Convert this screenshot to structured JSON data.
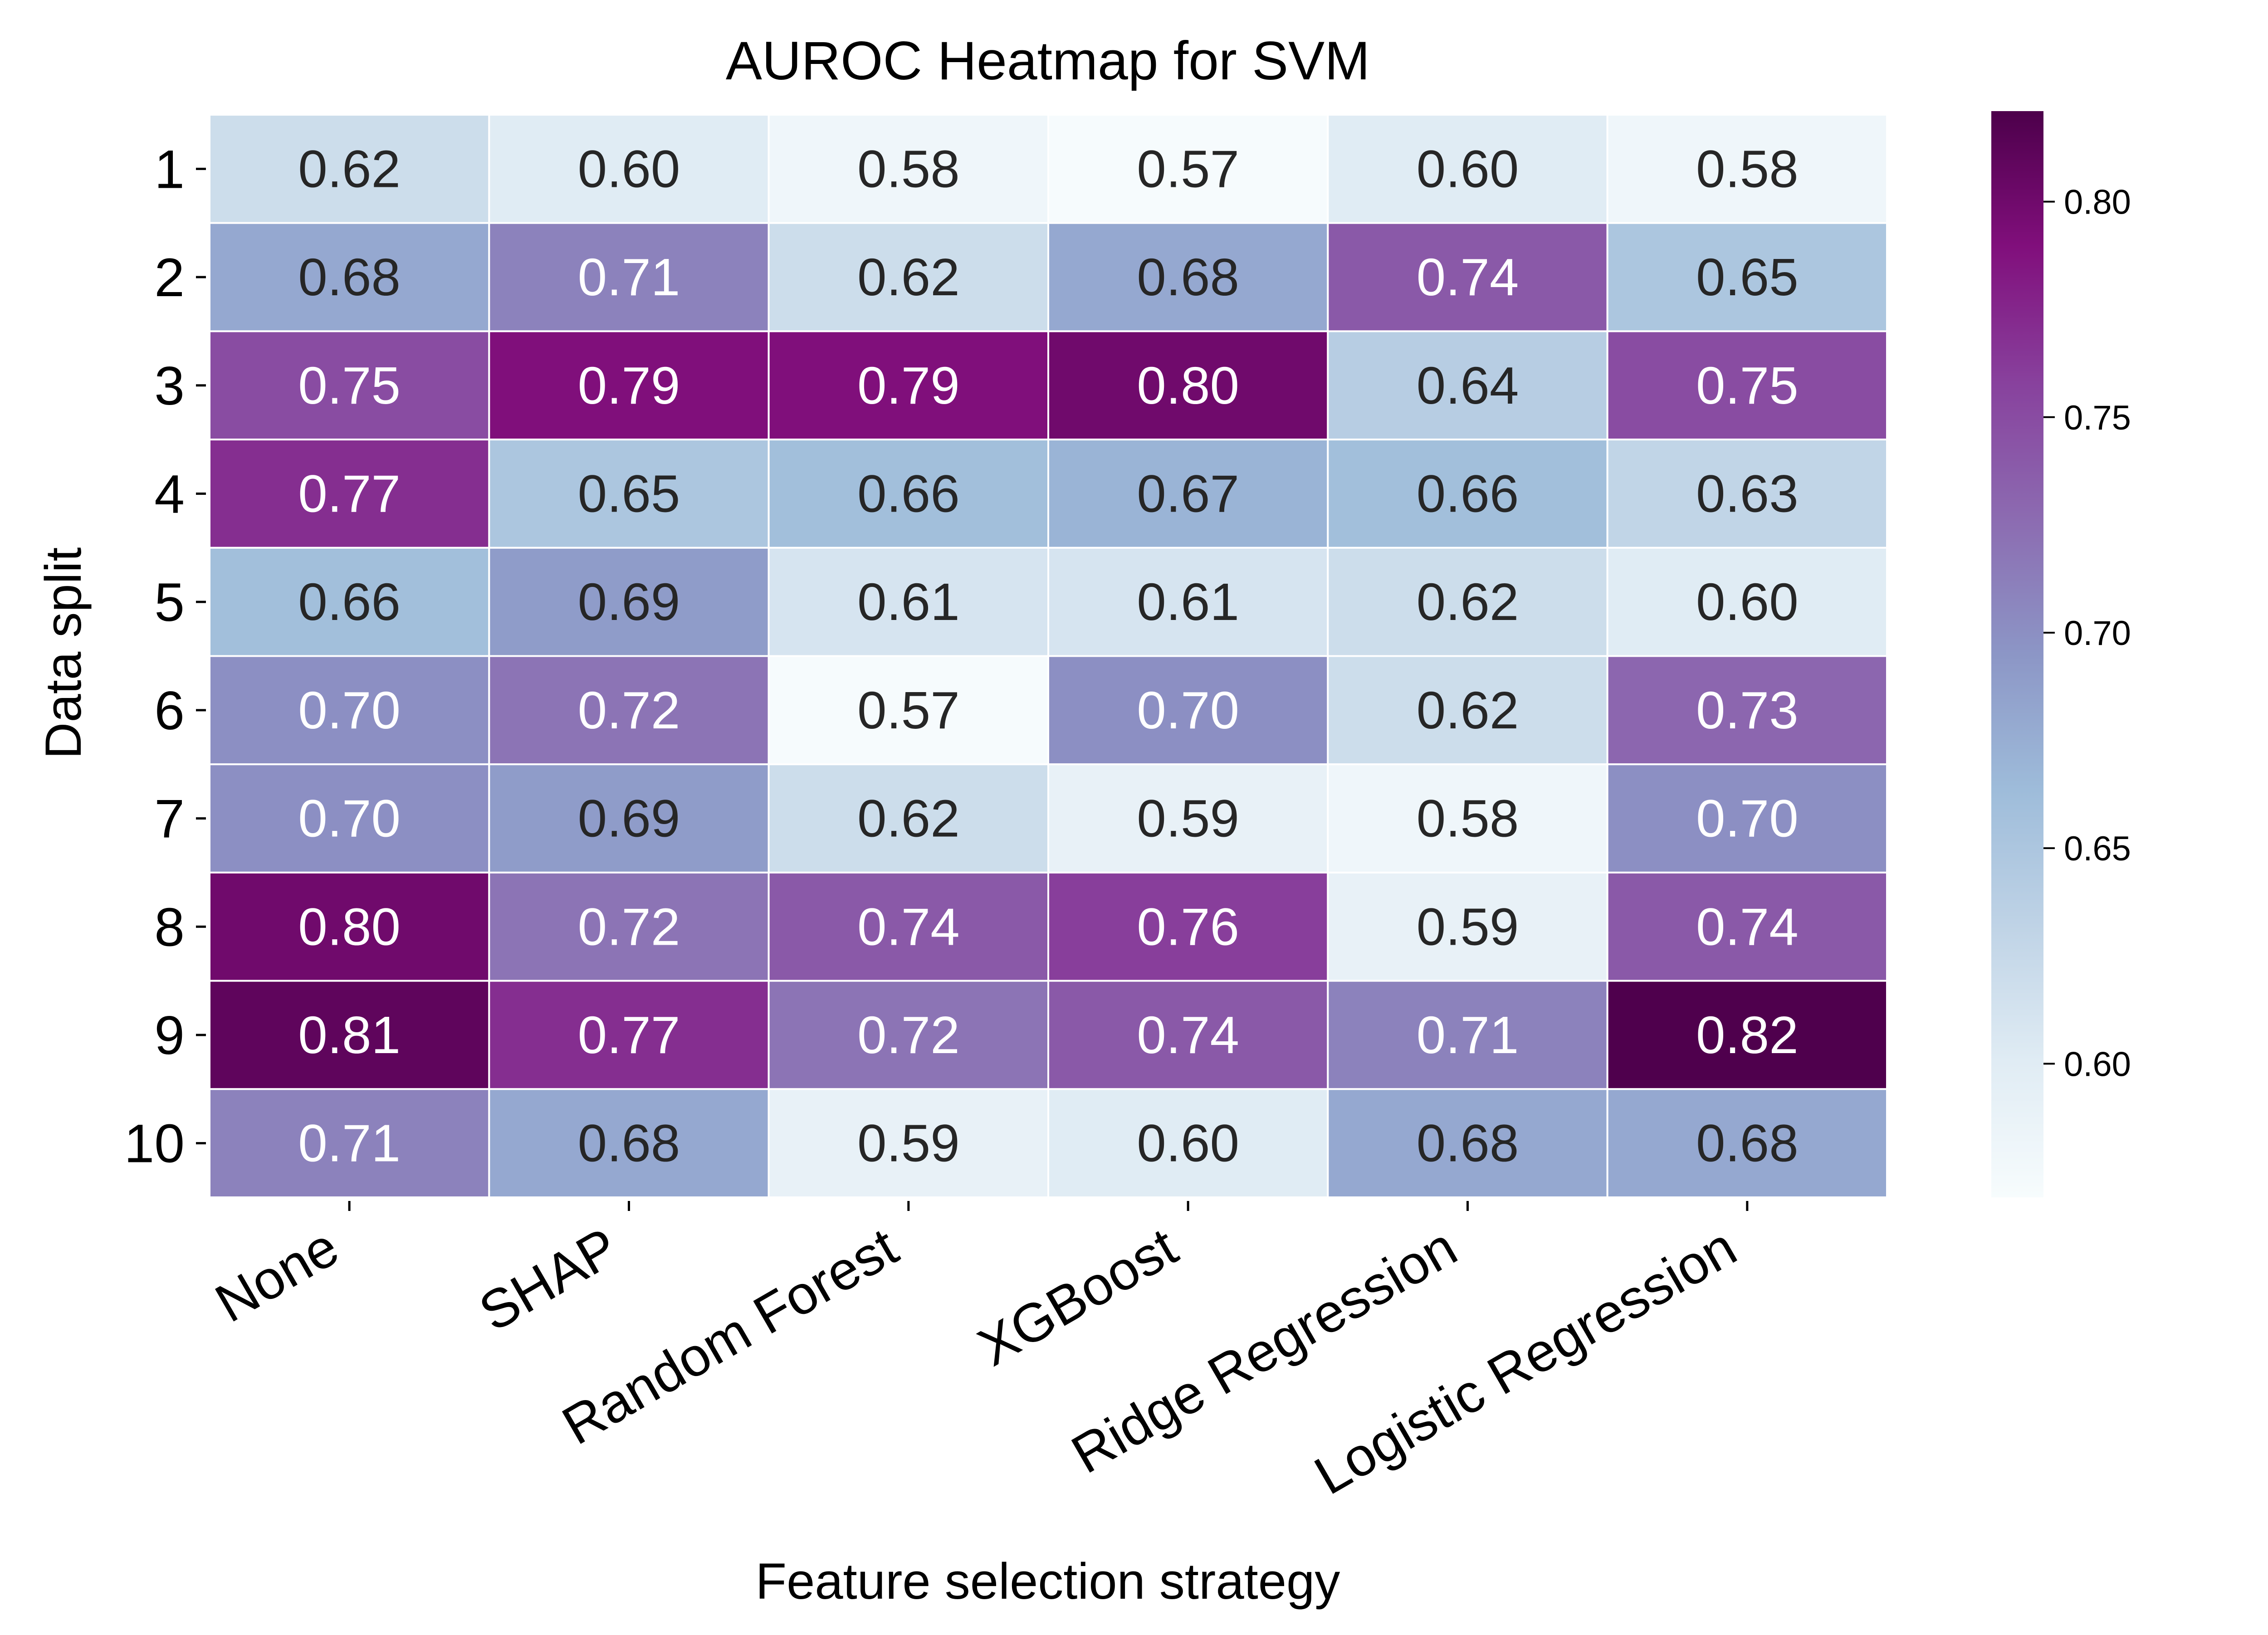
{
  "chart_data": {
    "type": "heatmap",
    "title": "AUROC Heatmap for SVM",
    "xlabel": "Feature selection strategy",
    "ylabel": "Data split",
    "x_categories": [
      "None",
      "SHAP",
      "Random Forest",
      "XGBoost",
      "Ridge Regression",
      "Logistic Regression"
    ],
    "y_categories": [
      "1",
      "2",
      "3",
      "4",
      "5",
      "6",
      "7",
      "8",
      "9",
      "10"
    ],
    "values": [
      [
        0.62,
        0.6,
        0.58,
        0.57,
        0.6,
        0.58
      ],
      [
        0.68,
        0.71,
        0.62,
        0.68,
        0.74,
        0.65
      ],
      [
        0.75,
        0.79,
        0.79,
        0.8,
        0.64,
        0.75
      ],
      [
        0.77,
        0.65,
        0.66,
        0.67,
        0.66,
        0.63
      ],
      [
        0.66,
        0.69,
        0.61,
        0.61,
        0.62,
        0.6
      ],
      [
        0.7,
        0.72,
        0.57,
        0.7,
        0.62,
        0.73
      ],
      [
        0.7,
        0.69,
        0.62,
        0.59,
        0.58,
        0.7
      ],
      [
        0.8,
        0.72,
        0.74,
        0.76,
        0.59,
        0.74
      ],
      [
        0.81,
        0.77,
        0.72,
        0.74,
        0.71,
        0.82
      ],
      [
        0.71,
        0.68,
        0.59,
        0.6,
        0.68,
        0.68
      ]
    ],
    "value_format": "0.00",
    "colorbar": {
      "min": 0.569,
      "max": 0.821,
      "ticks": [
        "0.60",
        "0.65",
        "0.70",
        "0.75",
        "0.80"
      ],
      "colormap": "BuPu"
    },
    "colors": {
      "colormap_stops": [
        "#f7fcfd",
        "#e0ecf4",
        "#bfd3e6",
        "#9ebcda",
        "#8c96c6",
        "#8c6bb1",
        "#88419d",
        "#810f7c",
        "#4d004b"
      ],
      "text_dark": "#262626",
      "text_light": "#ffffff",
      "cell_border": "#ffffff"
    },
    "grid": false
  }
}
